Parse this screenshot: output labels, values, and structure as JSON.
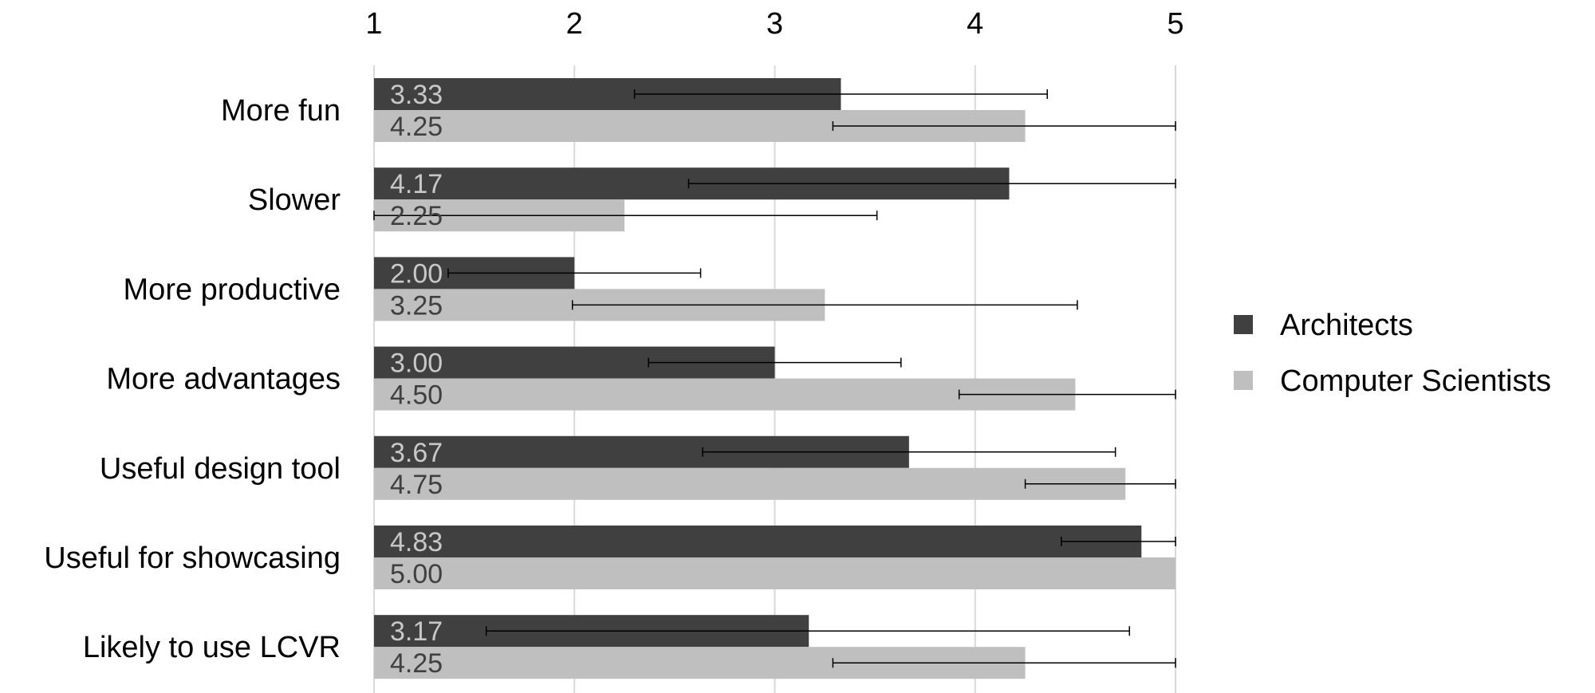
{
  "chart_data": {
    "type": "bar",
    "orientation": "horizontal",
    "title": "",
    "xlabel": "",
    "ylabel": "",
    "xlim": [
      1,
      5
    ],
    "xticks": [
      "1",
      "2",
      "3",
      "4",
      "5"
    ],
    "xaxis_position": "top",
    "grid": true,
    "legend_position": "right",
    "categories": [
      "More fun",
      "Slower",
      "More productive",
      "More advantages",
      "Useful design tool",
      "Useful for showcasing",
      "Likely to use LCVR"
    ],
    "series": [
      {
        "name": "Architects",
        "color": "#404040",
        "label_color": "#c8c8c8",
        "values": [
          3.33,
          4.17,
          2.0,
          3.0,
          3.67,
          4.83,
          3.17
        ],
        "labels": [
          "3.33",
          "4.17",
          "2.00",
          "3.00",
          "3.67",
          "4.83",
          "3.17"
        ],
        "error_low": [
          2.3,
          2.57,
          1.37,
          2.37,
          2.64,
          4.43,
          1.56
        ],
        "error_high": [
          4.36,
          5.0,
          2.63,
          3.63,
          4.7,
          5.0,
          4.77
        ]
      },
      {
        "name": "Computer Scientists",
        "color": "#bfbfbf",
        "label_color": "#404040",
        "values": [
          4.25,
          2.25,
          3.25,
          4.5,
          4.75,
          5.0,
          4.25
        ],
        "labels": [
          "4.25",
          "2.25",
          "3.25",
          "4.50",
          "4.75",
          "5.00",
          "4.25"
        ],
        "error_low": [
          3.29,
          1.0,
          1.99,
          3.92,
          4.25,
          5.0,
          3.29
        ],
        "error_high": [
          5.0,
          3.51,
          4.51,
          5.0,
          5.0,
          5.0,
          5.0
        ]
      }
    ]
  }
}
